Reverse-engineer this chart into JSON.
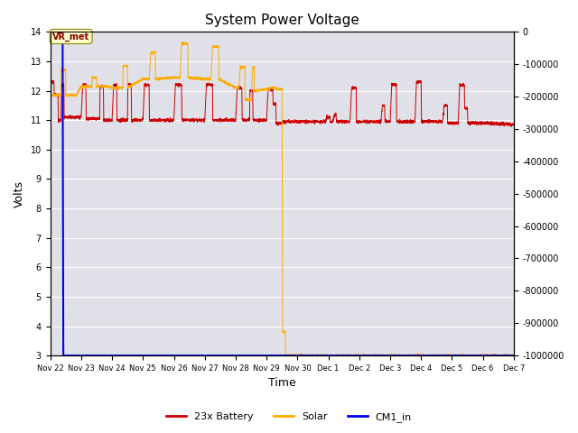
{
  "title": "System Power Voltage",
  "xlabel": "Time",
  "ylabel": "Volts",
  "ylim": [
    3.0,
    14.0
  ],
  "ylim2": [
    -1000000,
    0
  ],
  "yticks_left": [
    3.0,
    4.0,
    5.0,
    6.0,
    7.0,
    8.0,
    9.0,
    10.0,
    11.0,
    12.0,
    13.0,
    14.0
  ],
  "yticks_right": [
    0,
    -100000,
    -200000,
    -300000,
    -400000,
    -500000,
    -600000,
    -700000,
    -800000,
    -900000,
    -1000000
  ],
  "xtick_labels": [
    "Nov 22",
    "Nov 23",
    "Nov 24",
    "Nov 25",
    "Nov 26",
    "Nov 27",
    "Nov 28",
    "Nov 29",
    "Nov 30",
    "Dec 1",
    "Dec 2",
    "Dec 3",
    "Dec 4",
    "Dec 5",
    "Dec 6",
    "Dec 7"
  ],
  "background_color": "#e0e0e8",
  "grid_color": "#ffffff",
  "battery_color": "#cc0000",
  "solar_color": "#ffaa00",
  "cm1_color": "#0000ee",
  "annotation_text": "VR_met",
  "legend_labels": [
    "23x Battery",
    "Solar",
    "CM1_in"
  ]
}
